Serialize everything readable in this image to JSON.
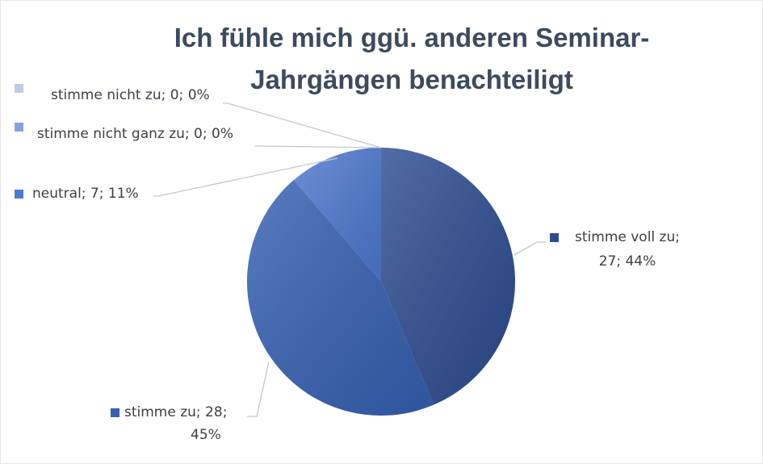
{
  "chart_data": {
    "type": "pie",
    "title_line1": "Ich fühle mich ggü. anderen Seminar-",
    "title_line2": "Jahrgängen benachteiligt",
    "slices": [
      {
        "name": "stimme voll zu",
        "value": 27,
        "percent": 44,
        "color": "#2d4c91",
        "label_line1": "stimme voll zu;",
        "label_line2": "27; 44%"
      },
      {
        "name": "stimme zu",
        "value": 28,
        "percent": 45,
        "color": "#3560b2",
        "label_line1": "stimme zu; 28;",
        "label_line2": "45%"
      },
      {
        "name": "neutral",
        "value": 7,
        "percent": 11,
        "color": "#4e79d0",
        "label_line1": "neutral; 7; 11%",
        "label_line2": ""
      },
      {
        "name": "stimme nicht ganz zu",
        "value": 0,
        "percent": 0,
        "color": "#8aa1d8",
        "label_line1": "stimme nicht ganz zu; 0; 0%",
        "label_line2": ""
      },
      {
        "name": "stimme nicht zu",
        "value": 0,
        "percent": 0,
        "color": "#c3cbe4",
        "label_line1": "stimme nicht zu; 0; 0%",
        "label_line2": ""
      }
    ]
  }
}
